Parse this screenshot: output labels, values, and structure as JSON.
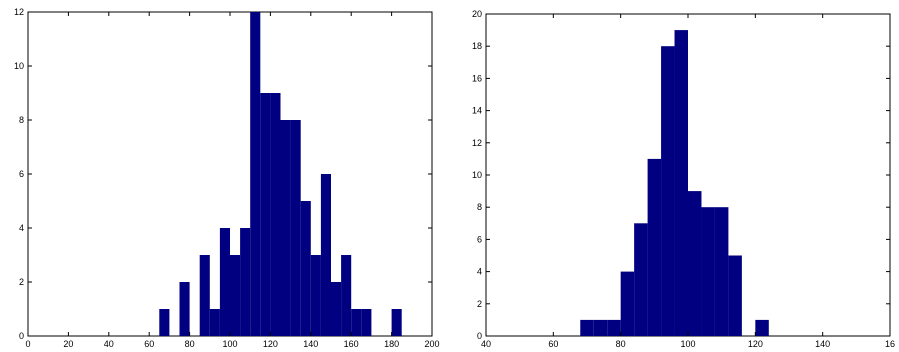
{
  "chart_data": [
    {
      "type": "bar",
      "title": "",
      "xlabel": "",
      "ylabel": "",
      "xlim": [
        0,
        200
      ],
      "ylim": [
        0,
        12
      ],
      "xticks": [
        "0",
        "20",
        "40",
        "60",
        "80",
        "100",
        "120",
        "140",
        "160",
        "180",
        "200"
      ],
      "yticks": [
        "0",
        "2",
        "4",
        "6",
        "8",
        "10",
        "12"
      ],
      "bin_width": 5,
      "bins": [
        {
          "x0": 65,
          "x1": 70,
          "value": 1
        },
        {
          "x0": 75,
          "x1": 80,
          "value": 2
        },
        {
          "x0": 85,
          "x1": 90,
          "value": 3
        },
        {
          "x0": 90,
          "x1": 95,
          "value": 1
        },
        {
          "x0": 95,
          "x1": 100,
          "value": 4
        },
        {
          "x0": 100,
          "x1": 105,
          "value": 3
        },
        {
          "x0": 105,
          "x1": 110,
          "value": 4
        },
        {
          "x0": 110,
          "x1": 115,
          "value": 12
        },
        {
          "x0": 115,
          "x1": 120,
          "value": 9
        },
        {
          "x0": 120,
          "x1": 125,
          "value": 9
        },
        {
          "x0": 125,
          "x1": 130,
          "value": 8
        },
        {
          "x0": 130,
          "x1": 135,
          "value": 8
        },
        {
          "x0": 135,
          "x1": 140,
          "value": 5
        },
        {
          "x0": 140,
          "x1": 145,
          "value": 3
        },
        {
          "x0": 145,
          "x1": 150,
          "value": 6
        },
        {
          "x0": 150,
          "x1": 155,
          "value": 2
        },
        {
          "x0": 155,
          "x1": 160,
          "value": 3
        },
        {
          "x0": 160,
          "x1": 165,
          "value": 1
        },
        {
          "x0": 165,
          "x1": 170,
          "value": 1
        },
        {
          "x0": 180,
          "x1": 185,
          "value": 1
        }
      ],
      "bar_color": "#000080",
      "grid": false
    },
    {
      "type": "bar",
      "title": "",
      "xlabel": "",
      "ylabel": "",
      "xlim": [
        40,
        160
      ],
      "ylim": [
        0,
        20
      ],
      "xticks": [
        "40",
        "60",
        "80",
        "100",
        "120",
        "140",
        "16"
      ],
      "yticks": [
        "0",
        "2",
        "4",
        "6",
        "8",
        "10",
        "12",
        "14",
        "16",
        "18",
        "20"
      ],
      "bin_width": 4,
      "bins": [
        {
          "x0": 68,
          "x1": 72,
          "value": 1
        },
        {
          "x0": 72,
          "x1": 76,
          "value": 1
        },
        {
          "x0": 76,
          "x1": 80,
          "value": 1
        },
        {
          "x0": 80,
          "x1": 84,
          "value": 4
        },
        {
          "x0": 84,
          "x1": 88,
          "value": 7
        },
        {
          "x0": 88,
          "x1": 92,
          "value": 11
        },
        {
          "x0": 92,
          "x1": 96,
          "value": 18
        },
        {
          "x0": 96,
          "x1": 100,
          "value": 19
        },
        {
          "x0": 100,
          "x1": 104,
          "value": 9
        },
        {
          "x0": 104,
          "x1": 108,
          "value": 8
        },
        {
          "x0": 108,
          "x1": 112,
          "value": 8
        },
        {
          "x0": 112,
          "x1": 116,
          "value": 5
        },
        {
          "x0": 116,
          "x1": 120,
          "value": 0
        },
        {
          "x0": 120,
          "x1": 124,
          "value": 1
        }
      ],
      "bar_color": "#000080",
      "grid": false
    }
  ]
}
